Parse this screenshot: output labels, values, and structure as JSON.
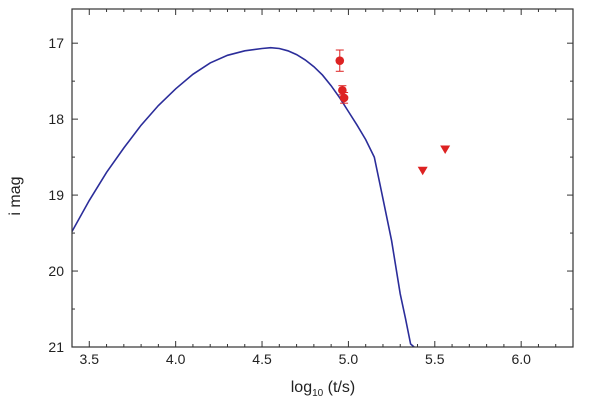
{
  "chart_data": {
    "type": "line",
    "title": "",
    "xlabel": {
      "main": "log",
      "sub": "10",
      "rest": " (t/s)"
    },
    "ylabel": "i mag",
    "xlim": [
      3.4,
      6.3
    ],
    "ylim": [
      21,
      16.55
    ],
    "y_inverted": true,
    "grid": false,
    "x_ticks": [
      "3.5",
      "4.0",
      "4.5",
      "5.0",
      "5.5",
      "6.0"
    ],
    "y_ticks": [
      "17",
      "18",
      "19",
      "20",
      "21"
    ],
    "colors": {
      "model": "#2b2d9a",
      "data": "#dd2222",
      "axis": "#333333"
    },
    "model_curve": {
      "name": "",
      "x": [
        3.4,
        3.5,
        3.6,
        3.7,
        3.8,
        3.9,
        4.0,
        4.1,
        4.2,
        4.3,
        4.4,
        4.5,
        4.55,
        4.6,
        4.65,
        4.7,
        4.75,
        4.8,
        4.85,
        4.9,
        4.95,
        5.0,
        5.05,
        5.1,
        5.15,
        5.2,
        5.25,
        5.3,
        5.33,
        5.36,
        5.38
      ],
      "y": [
        19.48,
        19.07,
        18.7,
        18.38,
        18.08,
        17.82,
        17.6,
        17.41,
        17.26,
        17.16,
        17.1,
        17.07,
        17.06,
        17.07,
        17.1,
        17.15,
        17.22,
        17.31,
        17.42,
        17.56,
        17.72,
        17.9,
        18.08,
        18.27,
        18.5,
        19.05,
        19.6,
        20.3,
        20.62,
        20.96,
        21.0
      ]
    },
    "detections": {
      "name": "",
      "x": [
        4.95,
        4.965,
        4.975
      ],
      "y": [
        17.23,
        17.62,
        17.72
      ],
      "yerr": [
        0.14,
        0.06,
        0.07
      ]
    },
    "upper_limits": {
      "name": "",
      "x": [
        5.43,
        5.56
      ],
      "y": [
        18.68,
        18.4
      ]
    }
  }
}
